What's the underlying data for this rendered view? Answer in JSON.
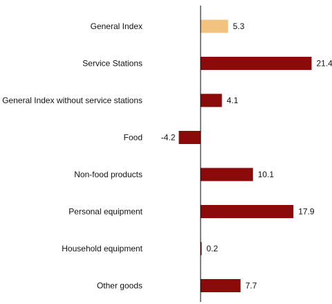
{
  "chart_data": {
    "type": "bar",
    "orientation": "horizontal",
    "categories": [
      "General Index",
      "Service Stations",
      "General Index without service stations",
      "Food",
      "Non-food products",
      "Personal equipment",
      "Household equipment",
      "Other goods"
    ],
    "values": [
      5.3,
      21.4,
      4.1,
      -4.2,
      10.1,
      17.9,
      0.2,
      7.7
    ],
    "value_labels": [
      "5.3",
      "21.4",
      "4.1",
      "-4.2",
      "10.1",
      "17.9",
      "0.2",
      "7.7"
    ],
    "highlight_index": 0,
    "colors": {
      "highlight": "#f4c27f",
      "bar": "#8b0a0a",
      "axis": "#000000"
    },
    "xlim": [
      -4.2,
      21.4
    ],
    "grid": false,
    "legend": "none",
    "title": "",
    "xlabel": "",
    "ylabel": ""
  }
}
